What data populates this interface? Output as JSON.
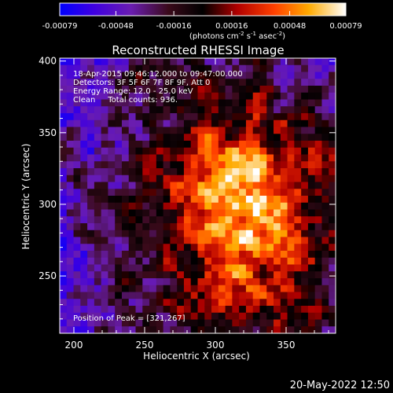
{
  "chart_data": {
    "type": "heatmap",
    "title": "Reconstructed RHESSI Image",
    "xlabel": "Heliocentric X (arcsec)",
    "ylabel": "Heliocentric Y (arcsec)",
    "xlim": [
      190,
      385
    ],
    "ylim": [
      210,
      402
    ],
    "xticks": [
      200,
      250,
      300,
      350
    ],
    "yticks": [
      250,
      300,
      350,
      400
    ],
    "colorbar": {
      "ticks": [
        "-0.00079",
        "-0.00048",
        "-0.00016",
        "0.00016",
        "0.00048",
        "0.00079"
      ],
      "unit_main": "(photons cm",
      "unit_sup1": "-2",
      "unit_mid": " s",
      "unit_sup2": "-1",
      "unit_mid2": " asec",
      "unit_sup3": "-2",
      "unit_end": ")",
      "range": [
        -0.00079,
        0.00079
      ]
    },
    "annotations": [
      "18-Apr-2015 09:46:12.000 to 09:47:00.000",
      "Detectors: 3F 5F 6F 7F 8F 9F, Att 0",
      "Energy Range: 12.0 - 25.0 keV",
      "Clean     Total counts: 936."
    ],
    "peak_label": "Position of Peak = [321,267]",
    "peak": [
      321,
      267
    ]
  },
  "footer": {
    "timestamp": "20-May-2022 12:50"
  }
}
